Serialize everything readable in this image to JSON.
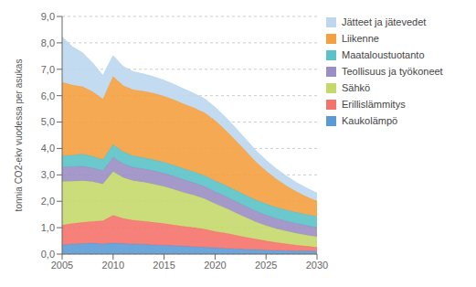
{
  "chart_data": {
    "type": "area",
    "stacked": true,
    "ylabel": "tonnia CO2-ekv vuodessa per asukas",
    "x": [
      2005,
      2006,
      2007,
      2008,
      2009,
      2010,
      2011,
      2012,
      2013,
      2014,
      2015,
      2016,
      2017,
      2018,
      2019,
      2020,
      2021,
      2022,
      2023,
      2024,
      2025,
      2026,
      2027,
      2028,
      2029,
      2030
    ],
    "series": [
      {
        "name": "Kaukolämpö",
        "color": "#5B9BD5",
        "values": [
          0.35,
          0.38,
          0.4,
          0.42,
          0.38,
          0.42,
          0.4,
          0.38,
          0.37,
          0.35,
          0.34,
          0.32,
          0.3,
          0.28,
          0.26,
          0.24,
          0.22,
          0.2,
          0.18,
          0.17,
          0.15,
          0.14,
          0.13,
          0.12,
          0.12,
          0.11
        ]
      },
      {
        "name": "Erillislämmitys",
        "color": "#F4736B",
        "values": [
          0.75,
          0.78,
          0.8,
          0.82,
          0.88,
          1.05,
          0.95,
          0.9,
          0.88,
          0.85,
          0.82,
          0.78,
          0.75,
          0.72,
          0.68,
          0.62,
          0.58,
          0.52,
          0.46,
          0.4,
          0.35,
          0.3,
          0.26,
          0.22,
          0.18,
          0.15
        ]
      },
      {
        "name": "Sähkö",
        "color": "#C5D96B",
        "values": [
          1.65,
          1.6,
          1.58,
          1.5,
          1.4,
          1.65,
          1.55,
          1.5,
          1.48,
          1.45,
          1.4,
          1.35,
          1.28,
          1.22,
          1.15,
          1.05,
          0.95,
          0.85,
          0.75,
          0.65,
          0.58,
          0.52,
          0.48,
          0.45,
          0.42,
          0.4
        ]
      },
      {
        "name": "Teollisuus ja työkoneet",
        "color": "#9B8EC4",
        "values": [
          0.55,
          0.55,
          0.55,
          0.52,
          0.5,
          0.55,
          0.52,
          0.5,
          0.5,
          0.5,
          0.5,
          0.49,
          0.48,
          0.47,
          0.46,
          0.45,
          0.44,
          0.43,
          0.42,
          0.41,
          0.4,
          0.39,
          0.38,
          0.37,
          0.36,
          0.35
        ]
      },
      {
        "name": "Maataloustuotanto",
        "color": "#5BC2C8",
        "values": [
          0.42,
          0.44,
          0.46,
          0.44,
          0.42,
          0.48,
          0.46,
          0.44,
          0.42,
          0.42,
          0.42,
          0.42,
          0.42,
          0.42,
          0.42,
          0.42,
          0.42,
          0.42,
          0.42,
          0.42,
          0.42,
          0.42,
          0.42,
          0.42,
          0.42,
          0.42
        ]
      },
      {
        "name": "Liikenne",
        "color": "#F5A040",
        "values": [
          2.8,
          2.65,
          2.55,
          2.45,
          2.3,
          2.58,
          2.5,
          2.5,
          2.52,
          2.52,
          2.5,
          2.48,
          2.45,
          2.42,
          2.38,
          2.28,
          2.1,
          1.9,
          1.68,
          1.45,
          1.25,
          1.08,
          0.92,
          0.78,
          0.67,
          0.58
        ]
      },
      {
        "name": "Jätteet ja jätevedet",
        "color": "#BDD7EE",
        "values": [
          1.7,
          1.45,
          1.28,
          1.08,
          0.88,
          0.78,
          0.72,
          0.68,
          0.65,
          0.62,
          0.6,
          0.58,
          0.56,
          0.54,
          0.52,
          0.5,
          0.48,
          0.46,
          0.44,
          0.42,
          0.4,
          0.38,
          0.36,
          0.34,
          0.32,
          0.3
        ]
      }
    ],
    "xlim": [
      2005,
      2030
    ],
    "xticks": [
      2005,
      2010,
      2015,
      2020,
      2025,
      2030
    ],
    "ylim": [
      0,
      9.0
    ],
    "yticks": [
      {
        "value": 0.0,
        "label": "0,0"
      },
      {
        "value": 1.0,
        "label": "1,0"
      },
      {
        "value": 2.0,
        "label": "2,0"
      },
      {
        "value": 3.0,
        "label": "3,0"
      },
      {
        "value": 4.0,
        "label": "4,0"
      },
      {
        "value": 5.0,
        "label": "5,0"
      },
      {
        "value": 6.0,
        "label": "6,0"
      },
      {
        "value": 7.0,
        "label": "7,0"
      },
      {
        "value": 8.0,
        "label": "8,0"
      },
      {
        "value": 9.0,
        "label": "9,0"
      }
    ],
    "grid": true,
    "legend": "right"
  }
}
